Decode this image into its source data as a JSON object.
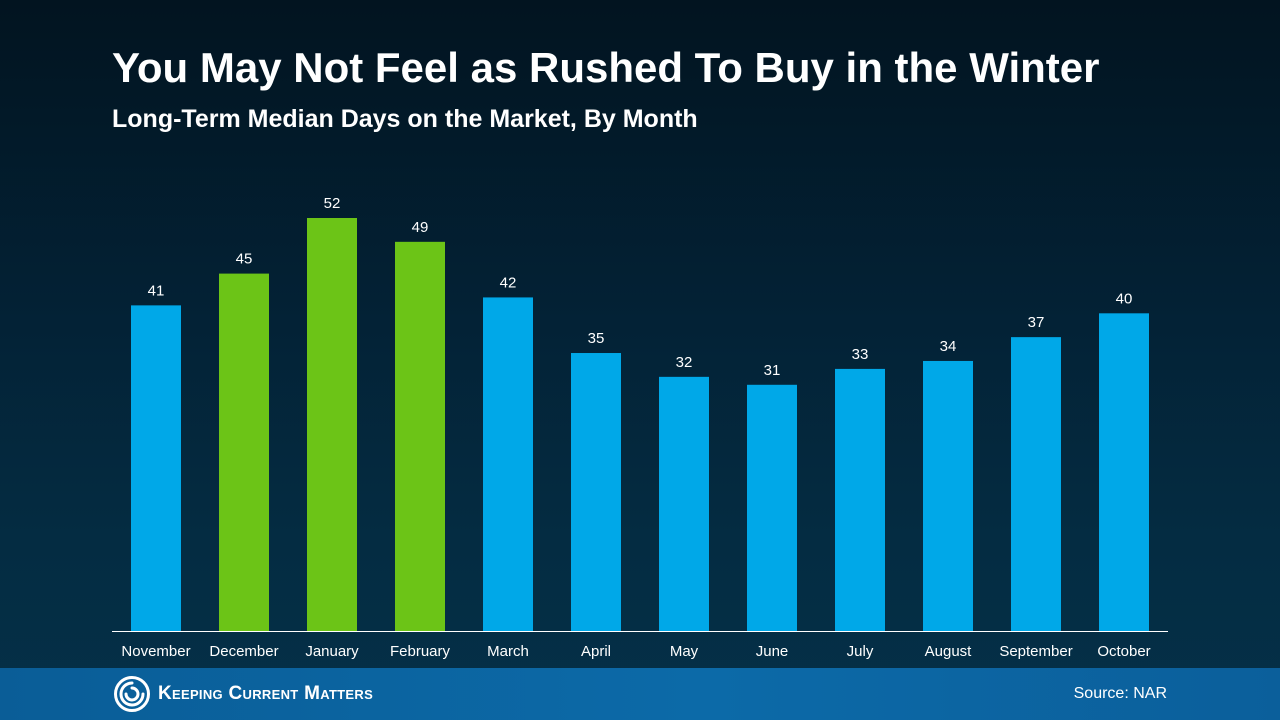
{
  "header": {
    "title": "You May Not Feel as Rushed To Buy in the Winter",
    "subtitle": "Long-Term Median Days on the Market, By Month"
  },
  "colors": {
    "winter": "#6cc417",
    "other": "#00a8e8",
    "axis": "#ffffff"
  },
  "chart_data": {
    "type": "bar",
    "title": "You May Not Feel as Rushed To Buy in the Winter",
    "subtitle": "Long-Term Median Days on the Market, By Month",
    "xlabel": "",
    "ylabel": "",
    "ylim": [
      0,
      52
    ],
    "categories": [
      "November",
      "December",
      "January",
      "February",
      "March",
      "April",
      "May",
      "June",
      "July",
      "August",
      "September",
      "October"
    ],
    "values": [
      41,
      45,
      52,
      49,
      42,
      35,
      32,
      31,
      33,
      34,
      37,
      40
    ],
    "highlighted": [
      "December",
      "January",
      "February"
    ],
    "data_labels": true,
    "grid": false,
    "legend": "none"
  },
  "footer": {
    "brand": "Keeping Current Matters",
    "source": "Source: NAR"
  }
}
